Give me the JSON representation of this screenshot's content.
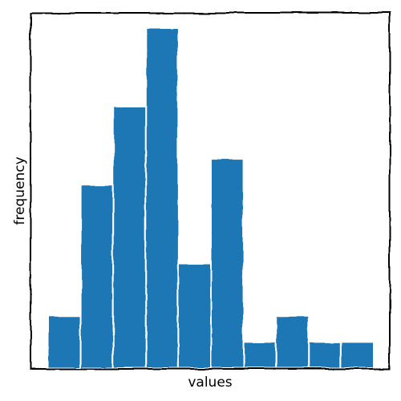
{
  "chart_data": {
    "type": "bar",
    "title": "",
    "xlabel": "values",
    "ylabel": "frequency",
    "bar_color": "#1f77b4",
    "edge_color": "#ffffff",
    "frame_color": "#000000",
    "grid": false,
    "ticks_shown": false,
    "style": "hand-drawn",
    "ylim": [
      0,
      13
    ],
    "values": [
      2,
      7,
      10,
      13,
      4,
      8,
      1,
      2,
      1,
      1
    ]
  }
}
